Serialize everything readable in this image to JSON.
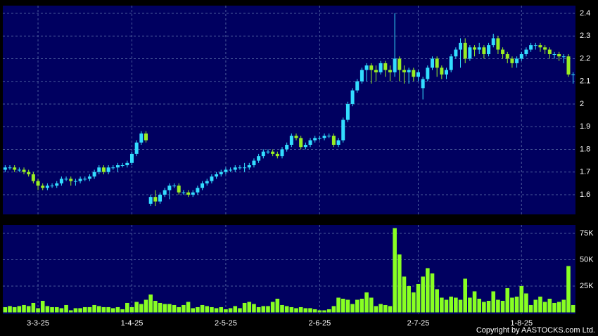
{
  "chart_data": {
    "type": "candlestick",
    "up_color": "#33ddff",
    "down_color": "#99ee22",
    "grid": true,
    "ylim": [
      1.513,
      2.434
    ],
    "yticks": [
      1.6,
      1.7,
      1.8,
      1.9,
      2,
      2.1,
      2.2,
      2.3,
      2.4
    ],
    "categories": [
      null,
      null,
      null,
      null,
      null,
      null,
      null,
      "3-3-25",
      null,
      null,
      null,
      null,
      null,
      null,
      null,
      null,
      null,
      null,
      null,
      null,
      null,
      null,
      null,
      null,
      null,
      null,
      null,
      "1-4-25",
      null,
      null,
      null,
      null,
      null,
      null,
      null,
      null,
      null,
      null,
      null,
      null,
      null,
      null,
      null,
      null,
      null,
      null,
      null,
      "2-5-25",
      null,
      null,
      null,
      null,
      null,
      null,
      null,
      null,
      null,
      null,
      null,
      null,
      null,
      null,
      null,
      null,
      null,
      null,
      null,
      "2-6-25",
      null,
      null,
      null,
      null,
      null,
      null,
      null,
      null,
      null,
      null,
      null,
      null,
      null,
      null,
      null,
      null,
      null,
      null,
      null,
      null,
      "2-7-25",
      null,
      null,
      null,
      null,
      null,
      null,
      null,
      null,
      null,
      null,
      null,
      null,
      null,
      null,
      null,
      null,
      null,
      null,
      null,
      null,
      null,
      "1-8-25",
      null,
      null,
      null,
      null,
      null,
      null,
      null,
      null,
      null,
      null,
      null
    ],
    "ohlc": [
      [
        1.71,
        1.73,
        1.7,
        1.72
      ],
      [
        1.72,
        1.73,
        1.71,
        1.72
      ],
      [
        1.72,
        1.73,
        1.7,
        1.71
      ],
      [
        1.71,
        1.72,
        1.7,
        1.71
      ],
      [
        1.71,
        1.72,
        1.69,
        1.7
      ],
      [
        1.7,
        1.71,
        1.68,
        1.69
      ],
      [
        1.69,
        1.7,
        1.65,
        1.66
      ],
      [
        1.66,
        1.67,
        1.62,
        1.64
      ],
      [
        1.64,
        1.65,
        1.62,
        1.63
      ],
      [
        1.63,
        1.65,
        1.62,
        1.64
      ],
      [
        1.64,
        1.65,
        1.63,
        1.64
      ],
      [
        1.64,
        1.66,
        1.63,
        1.65
      ],
      [
        1.65,
        1.68,
        1.64,
        1.67
      ],
      [
        1.67,
        1.68,
        1.66,
        1.67
      ],
      [
        1.67,
        1.68,
        1.64,
        1.66
      ],
      [
        1.66,
        1.67,
        1.64,
        1.66
      ],
      [
        1.66,
        1.68,
        1.65,
        1.67
      ],
      [
        1.67,
        1.68,
        1.66,
        1.67
      ],
      [
        1.67,
        1.69,
        1.66,
        1.68
      ],
      [
        1.68,
        1.71,
        1.67,
        1.7
      ],
      [
        1.7,
        1.73,
        1.69,
        1.72
      ],
      [
        1.72,
        1.73,
        1.69,
        1.7
      ],
      [
        1.7,
        1.73,
        1.69,
        1.72
      ],
      [
        1.72,
        1.73,
        1.71,
        1.72
      ],
      [
        1.72,
        1.74,
        1.7,
        1.73
      ],
      [
        1.73,
        1.74,
        1.72,
        1.73
      ],
      [
        1.73,
        1.75,
        1.72,
        1.74
      ],
      [
        1.74,
        1.79,
        1.73,
        1.78
      ],
      [
        1.78,
        1.84,
        1.77,
        1.83
      ],
      [
        1.83,
        1.88,
        1.82,
        1.87
      ],
      [
        1.87,
        1.88,
        1.83,
        1.84
      ],
      [
        1.56,
        1.6,
        1.55,
        1.59
      ],
      [
        1.59,
        1.62,
        1.55,
        1.57
      ],
      [
        1.57,
        1.61,
        1.56,
        1.6
      ],
      [
        1.6,
        1.63,
        1.59,
        1.62
      ],
      [
        1.62,
        1.65,
        1.58,
        1.64
      ],
      [
        1.64,
        1.65,
        1.63,
        1.64
      ],
      [
        1.64,
        1.65,
        1.6,
        1.61
      ],
      [
        1.61,
        1.62,
        1.6,
        1.61
      ],
      [
        1.61,
        1.62,
        1.59,
        1.6
      ],
      [
        1.6,
        1.62,
        1.59,
        1.61
      ],
      [
        1.61,
        1.64,
        1.6,
        1.63
      ],
      [
        1.63,
        1.66,
        1.62,
        1.65
      ],
      [
        1.65,
        1.67,
        1.64,
        1.66
      ],
      [
        1.66,
        1.69,
        1.65,
        1.68
      ],
      [
        1.68,
        1.7,
        1.67,
        1.69
      ],
      [
        1.69,
        1.71,
        1.68,
        1.7
      ],
      [
        1.7,
        1.72,
        1.69,
        1.71
      ],
      [
        1.71,
        1.72,
        1.7,
        1.71
      ],
      [
        1.71,
        1.73,
        1.7,
        1.72
      ],
      [
        1.72,
        1.73,
        1.71,
        1.72
      ],
      [
        1.72,
        1.74,
        1.7,
        1.72
      ],
      [
        1.72,
        1.74,
        1.71,
        1.73
      ],
      [
        1.73,
        1.76,
        1.72,
        1.75
      ],
      [
        1.75,
        1.78,
        1.74,
        1.77
      ],
      [
        1.77,
        1.8,
        1.76,
        1.79
      ],
      [
        1.79,
        1.8,
        1.78,
        1.79
      ],
      [
        1.79,
        1.8,
        1.77,
        1.78
      ],
      [
        1.78,
        1.79,
        1.76,
        1.77
      ],
      [
        1.77,
        1.81,
        1.76,
        1.8
      ],
      [
        1.8,
        1.83,
        1.79,
        1.82
      ],
      [
        1.82,
        1.87,
        1.81,
        1.86
      ],
      [
        1.86,
        1.87,
        1.84,
        1.85
      ],
      [
        1.85,
        1.86,
        1.8,
        1.81
      ],
      [
        1.81,
        1.83,
        1.8,
        1.82
      ],
      [
        1.82,
        1.85,
        1.81,
        1.84
      ],
      [
        1.84,
        1.86,
        1.83,
        1.85
      ],
      [
        1.85,
        1.86,
        1.84,
        1.85
      ],
      [
        1.85,
        1.87,
        1.84,
        1.86
      ],
      [
        1.86,
        1.87,
        1.85,
        1.86
      ],
      [
        1.86,
        1.87,
        1.81,
        1.82
      ],
      [
        1.82,
        1.85,
        1.81,
        1.84
      ],
      [
        1.84,
        1.94,
        1.83,
        1.93
      ],
      [
        1.93,
        2.01,
        1.92,
        2.0
      ],
      [
        2.0,
        2.07,
        1.99,
        2.06
      ],
      [
        2.06,
        2.11,
        2.05,
        2.1
      ],
      [
        2.1,
        2.16,
        2.09,
        2.15
      ],
      [
        2.15,
        2.18,
        2.1,
        2.17
      ],
      [
        2.17,
        2.18,
        2.09,
        2.15
      ],
      [
        2.15,
        2.17,
        2.1,
        2.14
      ],
      [
        2.14,
        2.19,
        2.13,
        2.18
      ],
      [
        2.18,
        2.19,
        2.12,
        2.15
      ],
      [
        2.15,
        2.17,
        2.1,
        2.14
      ],
      [
        2.14,
        2.4,
        2.12,
        2.2
      ],
      [
        2.2,
        2.21,
        2.1,
        2.15
      ],
      [
        2.15,
        2.17,
        2.09,
        2.14
      ],
      [
        2.14,
        2.16,
        2.09,
        2.15
      ],
      [
        2.15,
        2.16,
        2.1,
        2.12
      ],
      [
        2.12,
        2.15,
        2.1,
        2.14
      ],
      [
        2.07,
        2.12,
        2.02,
        2.11
      ],
      [
        2.11,
        2.17,
        2.1,
        2.16
      ],
      [
        2.16,
        2.21,
        2.15,
        2.2
      ],
      [
        2.2,
        2.21,
        2.12,
        2.16
      ],
      [
        2.16,
        2.17,
        2.11,
        2.13
      ],
      [
        2.13,
        2.16,
        2.11,
        2.15
      ],
      [
        2.15,
        2.22,
        2.14,
        2.21
      ],
      [
        2.21,
        2.25,
        2.2,
        2.24
      ],
      [
        2.24,
        2.29,
        2.16,
        2.27
      ],
      [
        2.27,
        2.29,
        2.18,
        2.2
      ],
      [
        2.2,
        2.26,
        2.19,
        2.25
      ],
      [
        2.25,
        2.26,
        2.21,
        2.24
      ],
      [
        2.24,
        2.27,
        2.22,
        2.25
      ],
      [
        2.25,
        2.26,
        2.2,
        2.22
      ],
      [
        2.22,
        2.27,
        2.21,
        2.26
      ],
      [
        2.26,
        2.31,
        2.25,
        2.29
      ],
      [
        2.29,
        2.3,
        2.22,
        2.24
      ],
      [
        2.24,
        2.25,
        2.2,
        2.22
      ],
      [
        2.22,
        2.23,
        2.18,
        2.2
      ],
      [
        2.2,
        2.21,
        2.16,
        2.18
      ],
      [
        2.18,
        2.21,
        2.16,
        2.2
      ],
      [
        2.2,
        2.23,
        2.19,
        2.22
      ],
      [
        2.22,
        2.25,
        2.21,
        2.24
      ],
      [
        2.24,
        2.27,
        2.23,
        2.26
      ],
      [
        2.26,
        2.27,
        2.24,
        2.26
      ],
      [
        2.26,
        2.27,
        2.23,
        2.25
      ],
      [
        2.25,
        2.26,
        2.22,
        2.24
      ],
      [
        2.24,
        2.25,
        2.2,
        2.22
      ],
      [
        2.22,
        2.23,
        2.2,
        2.22
      ],
      [
        2.22,
        2.23,
        2.19,
        2.21
      ],
      [
        2.21,
        2.22,
        2.18,
        2.21
      ],
      [
        2.21,
        2.22,
        2.12,
        2.13
      ],
      [
        2.13,
        2.14,
        2.09,
        2.13
      ]
    ],
    "volume": {
      "type": "bar",
      "color": "#88ff22",
      "ylim": [
        -1700,
        83000
      ],
      "yticks": [
        {
          "value": 25000,
          "label": "25K"
        },
        {
          "value": 50000,
          "label": "50K"
        },
        {
          "value": 75000,
          "label": "75K"
        }
      ],
      "values": [
        5000,
        6000,
        5000,
        6000,
        7000,
        6000,
        9000,
        4000,
        11000,
        6000,
        5000,
        5000,
        4000,
        7000,
        2000,
        4000,
        4000,
        5000,
        5000,
        7000,
        6000,
        5000,
        5000,
        4000,
        5000,
        3000,
        9000,
        5000,
        10000,
        8000,
        12000,
        17000,
        11000,
        9000,
        8000,
        8000,
        7000,
        5000,
        7000,
        10000,
        4000,
        5000,
        7000,
        6000,
        5000,
        4000,
        5000,
        3000,
        4000,
        6000,
        4000,
        9000,
        10000,
        8000,
        5000,
        6000,
        6000,
        10000,
        13000,
        7000,
        6000,
        5000,
        4000,
        5000,
        4000,
        4000,
        3000,
        2000,
        2000,
        3000,
        6000,
        14000,
        13000,
        12000,
        8000,
        12000,
        13000,
        19000,
        14000,
        6000,
        8000,
        7000,
        6000,
        80000,
        55000,
        34000,
        25000,
        19000,
        27000,
        34000,
        42000,
        37000,
        22000,
        14000,
        12000,
        15000,
        14000,
        12000,
        32000,
        14000,
        20000,
        13000,
        10000,
        11000,
        20000,
        12000,
        11000,
        23000,
        14000,
        15000,
        25000,
        18000,
        7000,
        12000,
        15000,
        10000,
        13000,
        9000,
        10000,
        12000,
        44000,
        7000
      ]
    },
    "copyright": "Copyright by AASTOCKS.com Ltd."
  }
}
